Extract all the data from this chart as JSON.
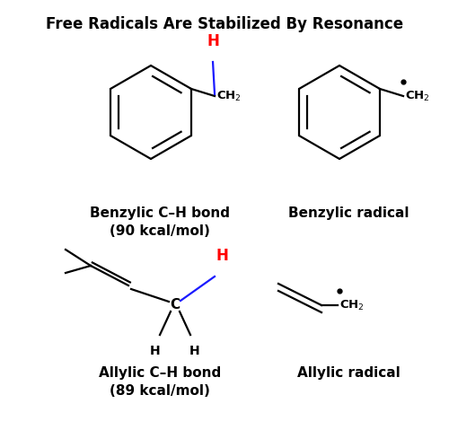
{
  "title": "Free Radicals Are Stabilized By Resonance",
  "title_fontsize": 12,
  "title_fontweight": "bold",
  "bg_color": "#ffffff",
  "black": "#000000",
  "red": "#ff0000",
  "blue": "#1a1aff",
  "label1": "Benzylic C–H bond\n(90 kcal/mol)",
  "label2": "Benzylic radical",
  "label3": "Allylic C–H bond\n(89 kcal/mol)",
  "label4": "Allylic radical",
  "label_fontsize": 11,
  "label_fontweight": "bold"
}
